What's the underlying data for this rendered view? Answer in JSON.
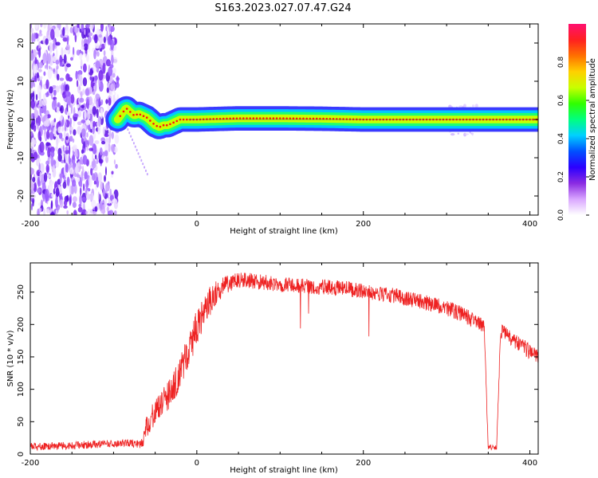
{
  "figure": {
    "title": "S163.2023.027.07.47.G24"
  },
  "chart_data": [
    {
      "type": "heatmap",
      "xlabel": "Height of straight line (km)",
      "ylabel": "Frequency (Hz)",
      "xlim": [
        -200,
        410
      ],
      "ylim": [
        -25,
        25
      ],
      "x_ticks": [
        -200,
        0,
        200,
        400
      ],
      "y_ticks": [
        -20,
        -10,
        0,
        10,
        20
      ],
      "grid": false,
      "colorbar": {
        "label": "Normalized spectral amplitude",
        "range": [
          0,
          1
        ],
        "ticks": [
          "0.0",
          "0.2",
          "0.4",
          "0.6",
          "0.8"
        ],
        "colors": [
          "#ffffff",
          "#d9a6ff",
          "#8a2be2",
          "#2b00ff",
          "#0050ff",
          "#00d0ff",
          "#00ff80",
          "#30ff00",
          "#c8ff00",
          "#ffd000",
          "#ff7000",
          "#ff2020",
          "#ff1070"
        ]
      },
      "noise_region": {
        "x_range": [
          -200,
          -95
        ],
        "freq_range": [
          -25,
          25
        ]
      },
      "signal_track": {
        "x": [
          -95,
          -90,
          -85,
          -80,
          -75,
          -70,
          -65,
          -60,
          -55,
          -50,
          -45,
          -40,
          -35,
          -30,
          -25,
          -20,
          -10,
          0,
          50,
          100,
          150,
          200,
          250,
          300,
          320,
          340,
          360,
          380,
          410
        ],
        "frequency": [
          0,
          1.5,
          3,
          2,
          1,
          1.5,
          1,
          0.5,
          -0.5,
          -1.5,
          -2,
          -1.5,
          -1.5,
          -1,
          -0.5,
          0,
          0,
          0,
          0.3,
          0.3,
          0.2,
          0,
          0,
          0,
          0,
          0,
          0,
          0,
          0
        ]
      }
    },
    {
      "type": "line",
      "xlabel": "Height of straight line (km)",
      "ylabel": "SNR (10 * v/v)",
      "xlim": [
        -200,
        410
      ],
      "ylim": [
        0,
        295
      ],
      "x_ticks": [
        -200,
        0,
        200,
        400
      ],
      "y_ticks": [
        0,
        50,
        100,
        150,
        200,
        250
      ],
      "grid": false,
      "series": [
        {
          "color": "#ee2222",
          "x": [
            -200,
            -180,
            -160,
            -140,
            -120,
            -100,
            -80,
            -70,
            -65,
            -60,
            -55,
            -50,
            -40,
            -30,
            -20,
            -10,
            0,
            10,
            20,
            30,
            40,
            50,
            60,
            80,
            100,
            120,
            140,
            160,
            180,
            200,
            220,
            240,
            260,
            280,
            300,
            320,
            340,
            345,
            350,
            355,
            360,
            365,
            370,
            380,
            390,
            400,
            410
          ],
          "y": [
            12,
            12,
            13,
            14,
            15,
            16,
            17,
            15,
            18,
            45,
            55,
            65,
            80,
            100,
            125,
            160,
            195,
            225,
            245,
            258,
            265,
            268,
            268,
            265,
            262,
            260,
            258,
            257,
            255,
            252,
            248,
            244,
            238,
            232,
            225,
            215,
            202,
            198,
            10,
            10,
            10,
            190,
            185,
            175,
            168,
            158,
            150
          ],
          "noise": [
            6,
            6,
            6,
            6,
            6,
            6,
            6,
            6,
            8,
            18,
            20,
            20,
            22,
            24,
            26,
            28,
            28,
            26,
            22,
            16,
            14,
            12,
            12,
            12,
            12,
            12,
            12,
            12,
            12,
            12,
            12,
            12,
            12,
            12,
            12,
            12,
            12,
            12,
            4,
            4,
            4,
            12,
            12,
            12,
            12,
            12,
            12
          ]
        }
      ]
    }
  ]
}
